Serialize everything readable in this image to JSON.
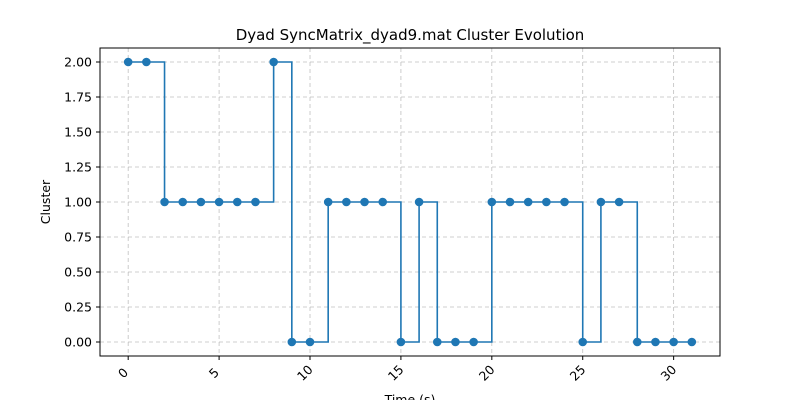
{
  "chart_data": {
    "type": "line",
    "title": "Dyad SyncMatrix_dyad9.mat Cluster Evolution",
    "xlabel": "Time (s)",
    "ylabel": "Cluster",
    "step": "post",
    "markers": true,
    "grid": true,
    "xlim": [
      -1.55,
      32.55
    ],
    "ylim": [
      -0.1,
      2.1
    ],
    "x_ticks": [
      0,
      5,
      10,
      15,
      20,
      25,
      30
    ],
    "x_tick_labels": [
      "0",
      "5",
      "10",
      "15",
      "20",
      "25",
      "30"
    ],
    "y_ticks": [
      0,
      0.25,
      0.5,
      0.75,
      1.0,
      1.25,
      1.5,
      1.75,
      2.0
    ],
    "y_tick_labels": [
      "0.00",
      "0.25",
      "0.50",
      "0.75",
      "1.00",
      "1.25",
      "1.50",
      "1.75",
      "2.00"
    ],
    "line_color": "#1f77b4",
    "x": [
      0,
      1,
      2,
      3,
      4,
      5,
      6,
      7,
      8,
      9,
      10,
      11,
      12,
      13,
      14,
      15,
      16,
      17,
      18,
      19,
      20,
      21,
      22,
      23,
      24,
      25,
      26,
      27,
      28,
      29,
      30,
      31
    ],
    "y": [
      2,
      2,
      1,
      1,
      1,
      1,
      1,
      1,
      2,
      0,
      0,
      1,
      1,
      1,
      1,
      0,
      1,
      0,
      0,
      0,
      1,
      1,
      1,
      1,
      1,
      0,
      1,
      1,
      0,
      0,
      0,
      0
    ]
  }
}
